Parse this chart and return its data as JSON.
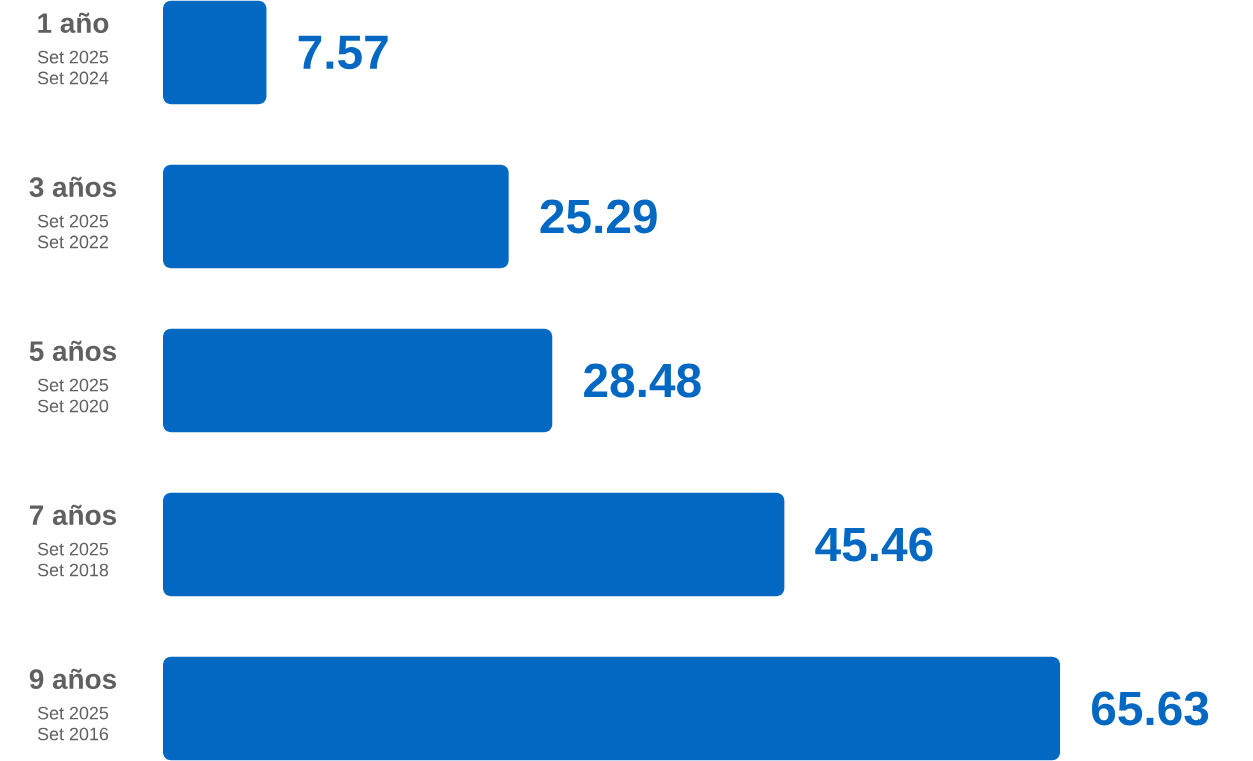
{
  "chart_data": {
    "type": "bar",
    "orientation": "horizontal",
    "categories": [
      "1 año",
      "3 años",
      "5 años",
      "7 años",
      "9 años"
    ],
    "values": [
      7.57,
      25.29,
      28.48,
      45.46,
      65.63
    ],
    "color": "#0368c1",
    "data_labels": true,
    "tick_labels": "y",
    "annotations": [
      "Set 2025 Set 2024",
      "Set 2025 Set 2022",
      "Set 2025 Set 2020",
      "Set 2025 Set 2018",
      "Set 2025 Set 2016"
    ]
  }
}
